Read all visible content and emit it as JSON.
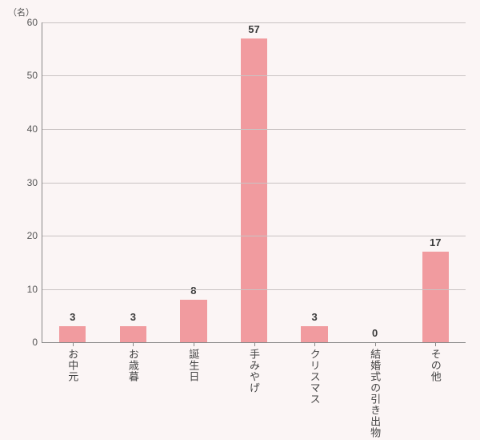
{
  "chart": {
    "type": "bar",
    "y_unit_label": "（名）",
    "ylim": [
      0,
      60
    ],
    "ytick_step": 10,
    "background_color": "#fbf5f5",
    "grid_color": "#c9c3c3",
    "axis_color": "#888888",
    "bar_color": "#f19b9f",
    "bar_width_ratio": 0.44,
    "label_fontsize": 13,
    "value_fontsize": 13,
    "categories": [
      "お中元",
      "お歳暮",
      "誕生日",
      "手みやげ",
      "クリスマス",
      "結婚式の引き出物",
      "その他"
    ],
    "values": [
      3,
      3,
      8,
      57,
      3,
      0,
      17
    ]
  }
}
